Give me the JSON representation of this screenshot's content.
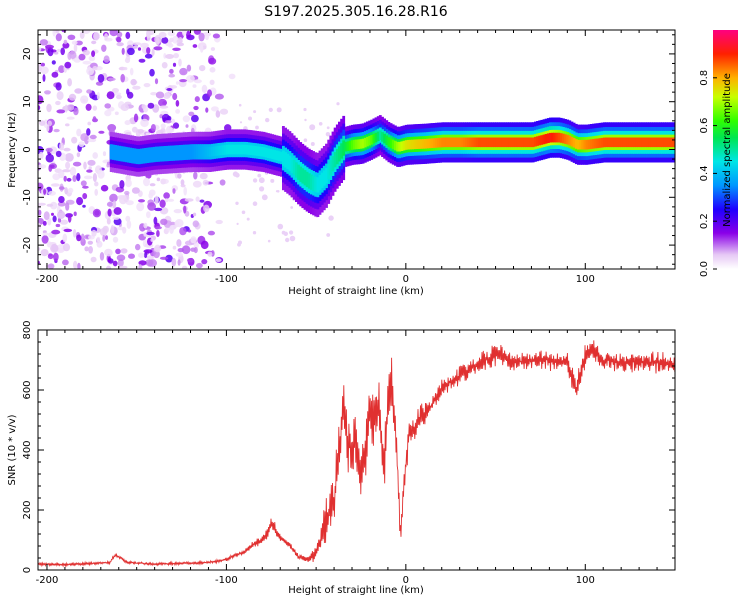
{
  "chart_data": [
    {
      "type": "heatmap",
      "title": "S197.2025.305.16.28.R16",
      "xlabel": "Height of straight line (km)",
      "ylabel": "Frequency (Hz)",
      "xlim": [
        -205,
        150
      ],
      "ylim": [
        -25,
        25
      ],
      "xticks": [
        -200,
        -100,
        0,
        100
      ],
      "yticks": [
        -20,
        -10,
        0,
        10,
        20
      ],
      "colorbar": {
        "label": "Normalized spectral amplitude",
        "range": [
          0.0,
          1.0
        ],
        "ticks": [
          0.0,
          0.2,
          0.4,
          0.6,
          0.8
        ],
        "tick_labels": [
          "0.0",
          "0.2",
          "0.4",
          "0.6",
          "0.8"
        ]
      },
      "ridge": {
        "description": "dominant frequency track vs height",
        "x": [
          -165,
          -150,
          -140,
          -120,
          -110,
          -100,
          -90,
          -80,
          -70,
          -65,
          -60,
          -55,
          -50,
          -45,
          -40,
          -35,
          -30,
          -25,
          -20,
          -15,
          -10,
          -5,
          0,
          10,
          20,
          30,
          40,
          50,
          60,
          70,
          80,
          85,
          90,
          95,
          100,
          110,
          120,
          130,
          140,
          150
        ],
        "y": [
          -0.5,
          -1.5,
          -1.0,
          -0.5,
          -0.5,
          0.0,
          0.0,
          -0.5,
          -1.5,
          -3.0,
          -5.0,
          -6.5,
          -7.5,
          -5.5,
          -2.0,
          0.5,
          1.0,
          1.2,
          2.0,
          3.0,
          1.5,
          0.5,
          1.0,
          1.2,
          1.5,
          1.5,
          1.5,
          1.5,
          1.5,
          1.5,
          2.5,
          2.5,
          2.0,
          1.0,
          1.0,
          1.5,
          1.5,
          1.5,
          1.5,
          1.5
        ],
        "amplitude": [
          0.35,
          0.35,
          0.35,
          0.35,
          0.4,
          0.45,
          0.45,
          0.45,
          0.45,
          0.45,
          0.5,
          0.5,
          0.45,
          0.45,
          0.5,
          0.55,
          0.65,
          0.7,
          0.65,
          0.5,
          0.6,
          0.7,
          0.75,
          0.8,
          0.85,
          0.85,
          0.9,
          0.9,
          0.9,
          0.9,
          0.95,
          0.9,
          0.85,
          0.8,
          0.85,
          0.9,
          0.9,
          0.9,
          0.9,
          0.9
        ]
      },
      "noise_region_x": [
        -205,
        -95
      ]
    },
    {
      "type": "line",
      "title": "",
      "xlabel": "Height of straight line (km)",
      "ylabel": "SNR (10 * v/v)",
      "xlim": [
        -205,
        150
      ],
      "ylim": [
        0,
        800
      ],
      "xticks": [
        -200,
        -100,
        0,
        100
      ],
      "yticks": [
        0,
        200,
        400,
        600,
        800
      ],
      "color": "#e03030",
      "series": [
        {
          "name": "SNR",
          "x": [
            -205,
            -190,
            -175,
            -165,
            -162,
            -155,
            -140,
            -125,
            -110,
            -100,
            -95,
            -90,
            -85,
            -80,
            -77,
            -75,
            -72,
            -70,
            -65,
            -60,
            -55,
            -50,
            -45,
            -40,
            -38,
            -35,
            -32,
            -30,
            -28,
            -25,
            -22,
            -20,
            -18,
            -15,
            -12,
            -10,
            -8,
            -5,
            -3,
            -2,
            0,
            2,
            5,
            8,
            10,
            15,
            20,
            25,
            30,
            40,
            50,
            55,
            60,
            70,
            80,
            90,
            95,
            100,
            105,
            110,
            120,
            130,
            140,
            150
          ],
          "y": [
            20,
            18,
            22,
            25,
            50,
            25,
            20,
            22,
            25,
            35,
            50,
            60,
            85,
            100,
            120,
            160,
            130,
            110,
            85,
            45,
            35,
            60,
            150,
            230,
            350,
            550,
            420,
            380,
            450,
            300,
            430,
            520,
            460,
            560,
            330,
            560,
            640,
            380,
            120,
            200,
            350,
            450,
            470,
            520,
            510,
            560,
            600,
            630,
            650,
            690,
            720,
            710,
            690,
            700,
            700,
            690,
            600,
            710,
            740,
            700,
            690,
            690,
            690,
            690
          ],
          "spread": [
            8,
            8,
            8,
            8,
            10,
            8,
            8,
            8,
            8,
            10,
            12,
            15,
            20,
            25,
            30,
            35,
            30,
            25,
            20,
            15,
            20,
            60,
            120,
            150,
            180,
            200,
            180,
            180,
            200,
            180,
            200,
            200,
            200,
            180,
            180,
            150,
            140,
            130,
            100,
            100,
            100,
            90,
            80,
            70,
            65,
            60,
            55,
            55,
            60,
            60,
            65,
            60,
            60,
            60,
            60,
            60,
            70,
            80,
            80,
            60,
            60,
            60,
            60,
            60
          ]
        }
      ]
    }
  ]
}
